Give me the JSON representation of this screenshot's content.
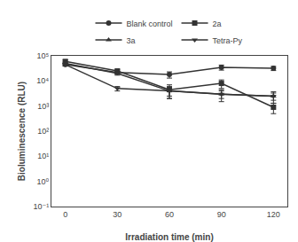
{
  "chart_data": {
    "type": "line",
    "x": [
      0,
      30,
      60,
      90,
      120
    ],
    "series": [
      {
        "name": "Blank control",
        "color": "#333333",
        "marker": "circle",
        "line_style": "solid",
        "values": [
          45000,
          22000,
          18000,
          35000,
          32000
        ],
        "yerr": [
          5000,
          3000,
          5000,
          8000,
          6000
        ]
      },
      {
        "name": "2a",
        "color": "#333333",
        "marker": "square",
        "line_style": "solid",
        "values": [
          60000,
          25000,
          4500,
          8000,
          900
        ],
        "yerr": [
          8000,
          4000,
          2500,
          3000,
          400
        ]
      },
      {
        "name": "3a",
        "color": "#333333",
        "marker": "triangle-up",
        "line_style": "solid",
        "values": [
          50000,
          20000,
          4000,
          3000,
          2500
        ],
        "yerr": [
          7000,
          3000,
          2000,
          1500,
          1200
        ]
      },
      {
        "name": "Tetra-Py",
        "color": "#333333",
        "marker": "triangle-down",
        "line_style": "solid",
        "values": [
          45000,
          5000,
          4000,
          3000,
          2500
        ],
        "yerr": [
          6000,
          1000,
          1500,
          1000,
          800
        ]
      }
    ],
    "xlabel": "Irradiation time (min)",
    "ylabel": "Bioluminescence (RLU)",
    "xlim": [
      -8,
      128
    ],
    "xticks": [
      0,
      30,
      60,
      90,
      120
    ],
    "ylim": [
      0.1,
      100000
    ],
    "yticks": [
      {
        "value": 0.1,
        "label": "10⁻¹"
      },
      {
        "value": 1,
        "label": "10⁰"
      },
      {
        "value": 10,
        "label": "10¹"
      },
      {
        "value": 100,
        "label": "10²"
      },
      {
        "value": 1000,
        "label": "10³"
      },
      {
        "value": 10000,
        "label": "10⁴"
      },
      {
        "value": 100000,
        "label": "10⁵"
      }
    ],
    "log": "y",
    "grid": false,
    "legend": "top"
  }
}
